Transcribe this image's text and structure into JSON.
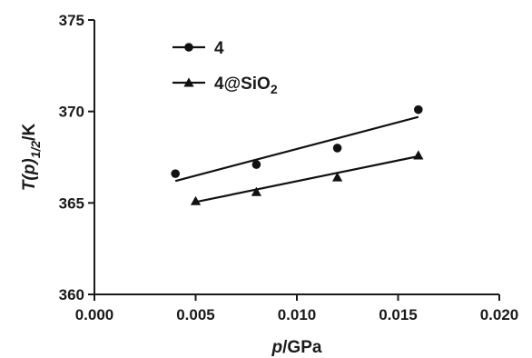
{
  "chart_data": {
    "type": "scatter",
    "xlabel": {
      "main": "p",
      "unit": "/GPa"
    },
    "ylabel": {
      "main": "T(p)",
      "sub": "1/2",
      "unit": "/K"
    },
    "xlim": [
      0.0,
      0.02
    ],
    "ylim": [
      360,
      375
    ],
    "x_ticks": [
      "0.000",
      "0.005",
      "0.010",
      "0.015",
      "0.020"
    ],
    "y_ticks": [
      "360",
      "365",
      "370",
      "375"
    ],
    "grid": false,
    "legend_position": "top-left",
    "series": [
      {
        "name": "4",
        "name_sub": "",
        "marker": "circle",
        "color": "#111111",
        "x": [
          0.004,
          0.008,
          0.012,
          0.016
        ],
        "y": [
          366.6,
          367.1,
          368.0,
          370.1
        ],
        "fit": {
          "x": [
            0.004,
            0.016
          ],
          "y": [
            366.2,
            369.7
          ]
        }
      },
      {
        "name": "4@SiO",
        "name_sub": "2",
        "marker": "triangle",
        "color": "#111111",
        "x": [
          0.005,
          0.008,
          0.012,
          0.016
        ],
        "y": [
          365.1,
          365.6,
          366.4,
          367.6
        ],
        "fit": {
          "x": [
            0.005,
            0.016
          ],
          "y": [
            365.05,
            367.55
          ]
        }
      }
    ]
  }
}
